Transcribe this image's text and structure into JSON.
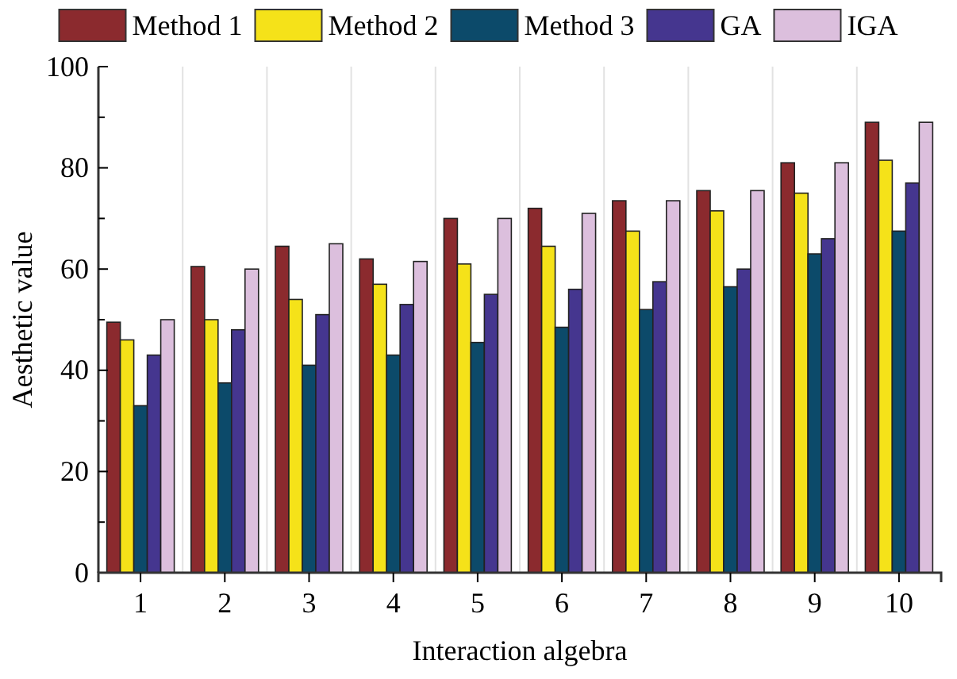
{
  "chart_data": {
    "type": "bar",
    "xlabel": "Interaction algebra",
    "ylabel": "Aesthetic value",
    "categories": [
      "1",
      "2",
      "3",
      "4",
      "5",
      "6",
      "7",
      "8",
      "9",
      "10"
    ],
    "series": [
      {
        "name": "Method 1",
        "color": "#8b2a2e",
        "values": [
          49.5,
          60.5,
          64.5,
          62,
          70,
          72,
          73.5,
          75.5,
          81,
          89
        ]
      },
      {
        "name": "Method 2",
        "color": "#f5e219",
        "values": [
          46,
          50,
          54,
          57,
          61,
          64.5,
          67.5,
          71.5,
          75,
          81.5
        ]
      },
      {
        "name": "Method 3",
        "color": "#0c4a6a",
        "values": [
          33,
          37.5,
          41,
          43,
          45.5,
          48.5,
          52,
          56.5,
          63,
          67.5
        ]
      },
      {
        "name": "GA",
        "color": "#45368f",
        "values": [
          43,
          48,
          51,
          53,
          55,
          56,
          57.5,
          60,
          66,
          77
        ]
      },
      {
        "name": "IGA",
        "color": "#dcbfdd",
        "values": [
          50,
          60,
          65,
          61.5,
          70,
          71,
          73.5,
          75.5,
          81,
          89
        ]
      }
    ],
    "ylim": [
      0,
      100
    ],
    "yticks": [
      0,
      {
        "value": 10,
        "label": null
      },
      20,
      {
        "value": 30,
        "label": null
      },
      40,
      {
        "value": 50,
        "label": null
      },
      60,
      {
        "value": 70,
        "label": null
      },
      80,
      {
        "value": 90,
        "label": null
      },
      100
    ],
    "grid": "x",
    "legend": "top"
  }
}
